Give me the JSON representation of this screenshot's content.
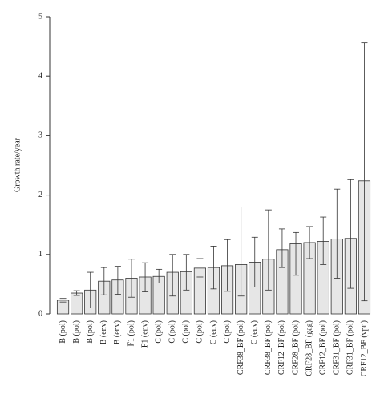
{
  "chart_data": {
    "type": "bar",
    "y_label": "Growth rate/year",
    "categories": [
      "B (pol)",
      "B (pol)",
      "B (pol)",
      "B (env)",
      "B (env)",
      "F1 (pol)",
      "F1 (env)",
      "C (pol)",
      "C (pol)",
      "C (pol)",
      "C (pol)",
      "C (env)",
      "C (pol)",
      "CRF38_BF (pol)",
      "C (env)",
      "CRF38_BF (pol)",
      "CRF12_BF (pol)",
      "CRF28_BF (pol)",
      "CRF28_BF (gag)",
      "CRF12_BF (pol)",
      "CRF31_BF (pol)",
      "CRF31_BF (pol)",
      "CRF12_BF (vpu)"
    ],
    "values": [
      0.23,
      0.35,
      0.4,
      0.55,
      0.57,
      0.6,
      0.62,
      0.63,
      0.7,
      0.71,
      0.77,
      0.78,
      0.81,
      0.83,
      0.87,
      0.92,
      1.08,
      1.18,
      1.2,
      1.22,
      1.26,
      1.27,
      2.24
    ],
    "lower": [
      0.2,
      0.31,
      0.1,
      0.32,
      0.33,
      0.28,
      0.37,
      0.52,
      0.3,
      0.4,
      0.62,
      0.42,
      0.38,
      0.3,
      0.45,
      0.4,
      0.78,
      0.65,
      0.93,
      0.83,
      0.6,
      0.43,
      0.22
    ],
    "upper": [
      0.26,
      0.39,
      0.7,
      0.78,
      0.8,
      0.92,
      0.86,
      0.75,
      1.0,
      1.0,
      0.93,
      1.14,
      1.25,
      1.8,
      1.29,
      1.75,
      1.43,
      1.37,
      1.47,
      1.63,
      2.1,
      2.26,
      4.56
    ],
    "color": "#e6e6e6",
    "ylim": [
      0,
      5
    ],
    "yticks": [
      0,
      1,
      2,
      3,
      4,
      5
    ]
  }
}
